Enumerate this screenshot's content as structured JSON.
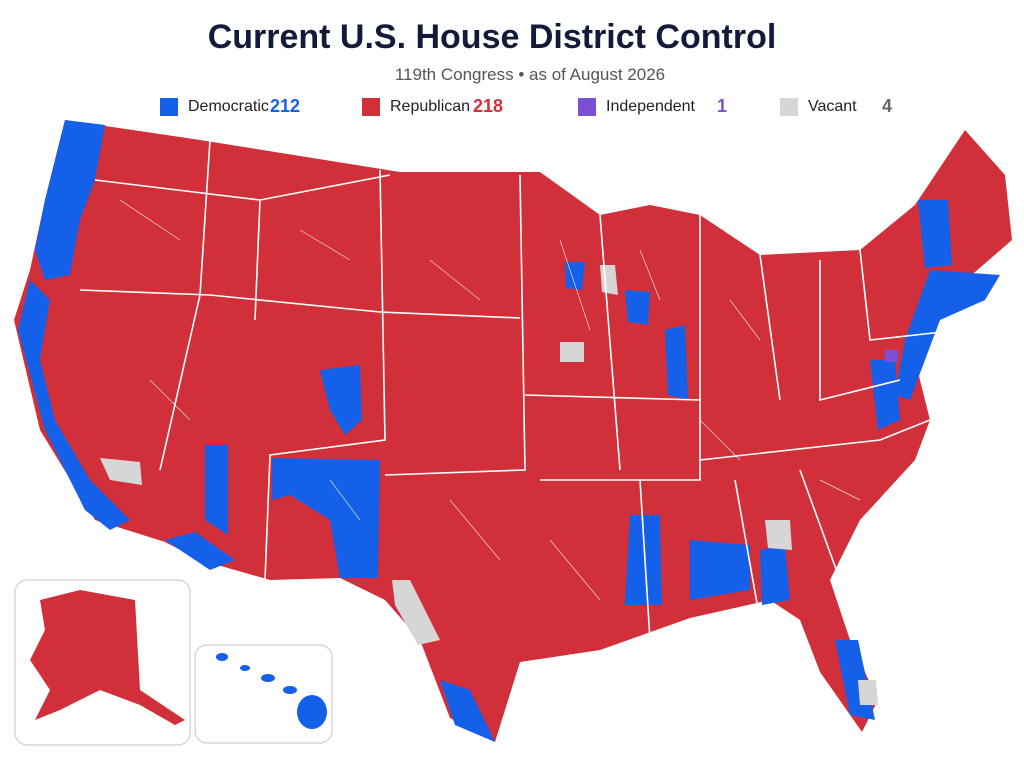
{
  "header": {
    "title": "Current U.S. House District Control",
    "subtitle": "119th Congress • as of August 2026"
  },
  "legend": [
    {
      "label": "Democratic",
      "count": 212,
      "color": "#1560e8"
    },
    {
      "label": "Republican",
      "count": 218,
      "color": "#d1303a"
    },
    {
      "label": "Independent",
      "count": 1,
      "color": "#7b4fd6"
    },
    {
      "label": "Vacant",
      "count": 4,
      "color": "#d6d6d6"
    }
  ]
}
